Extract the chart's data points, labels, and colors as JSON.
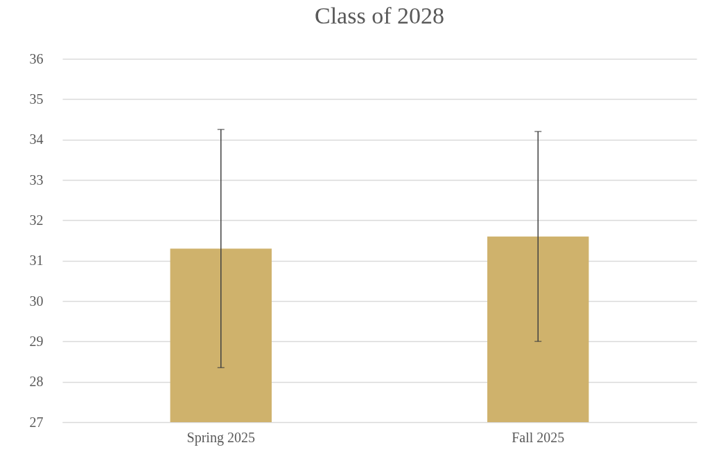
{
  "chart_data": {
    "type": "bar",
    "title": "Class of 2028",
    "categories": [
      "Spring 2025",
      "Fall 2025"
    ],
    "values": [
      31.3,
      31.6
    ],
    "errors": [
      [
        28.35,
        34.25
      ],
      [
        29.0,
        34.2
      ]
    ],
    "color": "#cfb26c",
    "ylim": [
      27,
      36
    ],
    "yticks": [
      27,
      28,
      29,
      30,
      31,
      32,
      33,
      34,
      35,
      36
    ],
    "grid": true
  }
}
